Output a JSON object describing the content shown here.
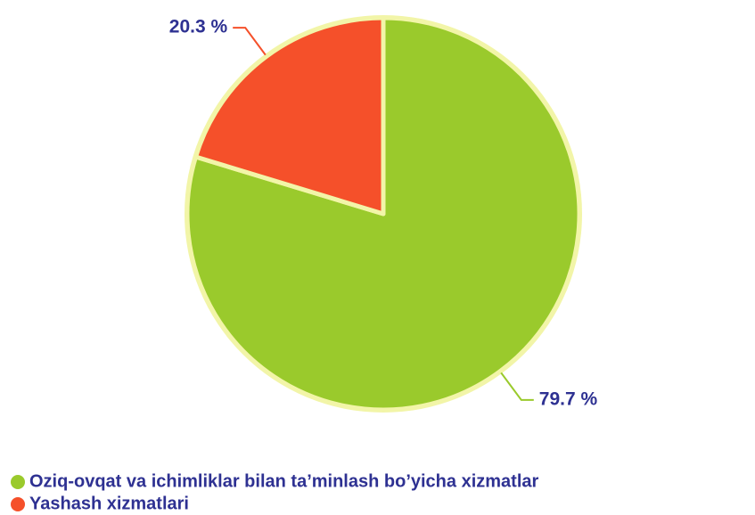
{
  "chart_data": {
    "type": "pie",
    "categories": [
      "Oziq-ovqat va ichimliklar bilan ta’minlash bo’yicha xizmatlar",
      "Yashash xizmatlari"
    ],
    "values": [
      79.7,
      20.3
    ],
    "value_labels": [
      "79.7 %",
      "20.3 %"
    ],
    "colors": [
      "#9ACA2C",
      "#F5502A"
    ]
  }
}
